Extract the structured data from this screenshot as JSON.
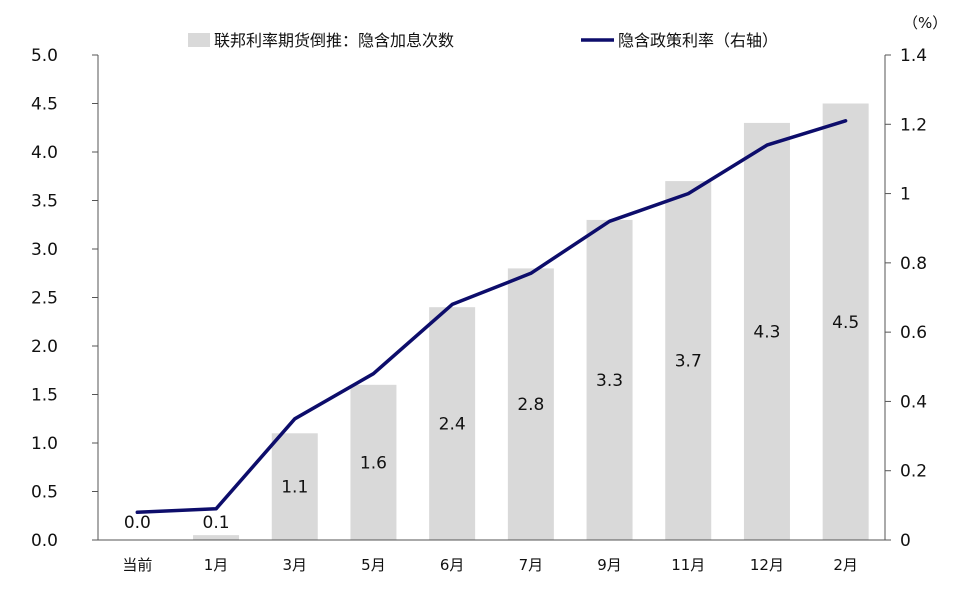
{
  "chart_data": {
    "type": "bar+line",
    "categories": [
      "当前",
      "1月",
      "3月",
      "5月",
      "6月",
      "7月",
      "9月",
      "11月",
      "12月",
      "2月"
    ],
    "series": [
      {
        "name": "联邦利率期货倒推：隐含加息次数",
        "kind": "bar",
        "axis": "left",
        "color": "#d9d9d9",
        "values": [
          0.0,
          0.05,
          1.1,
          1.6,
          2.4,
          2.8,
          3.3,
          3.7,
          4.3,
          4.5
        ],
        "labels": [
          "0.0",
          "0.1",
          "1.1",
          "1.6",
          "2.4",
          "2.8",
          "3.3",
          "3.7",
          "4.3",
          "4.5"
        ]
      },
      {
        "name": "隐含政策利率（右轴）",
        "kind": "line",
        "axis": "right",
        "color": "#0d0d6b",
        "values": [
          0.08,
          0.09,
          0.35,
          0.48,
          0.68,
          0.77,
          0.92,
          1.0,
          1.14,
          1.21
        ]
      }
    ],
    "left_axis": {
      "min": 0,
      "max": 5,
      "ticks": [
        "0.0",
        "0.5",
        "1.0",
        "1.5",
        "2.0",
        "2.5",
        "3.0",
        "3.5",
        "4.0",
        "4.5",
        "5.0"
      ]
    },
    "right_axis": {
      "min": 0,
      "max": 1.4,
      "unit": "（%）",
      "ticks": [
        "0",
        "0.2",
        "0.4",
        "0.6",
        "0.8",
        "1",
        "1.2",
        "1.4"
      ]
    },
    "grid": false,
    "legend_position": "top"
  }
}
